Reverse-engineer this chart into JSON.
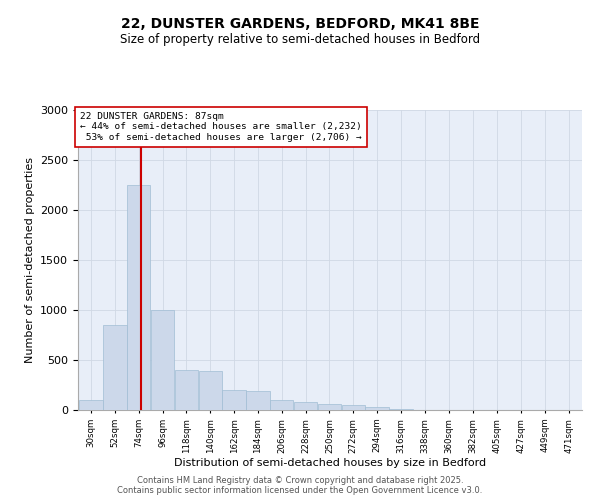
{
  "title_line1": "22, DUNSTER GARDENS, BEDFORD, MK41 8BE",
  "title_line2": "Size of property relative to semi-detached houses in Bedford",
  "xlabel": "Distribution of semi-detached houses by size in Bedford",
  "ylabel": "Number of semi-detached properties",
  "property_size": 87,
  "property_label": "22 DUNSTER GARDENS: 87sqm",
  "pct_smaller": 44,
  "count_smaller": 2232,
  "pct_larger": 53,
  "count_larger": 2706,
  "bin_labels": [
    "30sqm",
    "52sqm",
    "74sqm",
    "96sqm",
    "118sqm",
    "140sqm",
    "162sqm",
    "184sqm",
    "206sqm",
    "228sqm",
    "250sqm",
    "272sqm",
    "294sqm",
    "316sqm",
    "338sqm",
    "360sqm",
    "382sqm",
    "405sqm",
    "427sqm",
    "449sqm",
    "471sqm"
  ],
  "bin_starts": [
    30,
    52,
    74,
    96,
    118,
    140,
    162,
    184,
    206,
    228,
    250,
    272,
    294,
    316,
    338,
    360,
    382,
    405,
    427,
    449,
    471
  ],
  "bin_width": 22,
  "counts": [
    100,
    850,
    2250,
    1000,
    400,
    390,
    200,
    190,
    105,
    80,
    65,
    50,
    30,
    10,
    5,
    3,
    2,
    1,
    1,
    1,
    0
  ],
  "bar_color": "#ccd8ea",
  "bar_edge_color": "#a0bdd4",
  "vline_x": 87,
  "vline_color": "#cc0000",
  "grid_color": "#d0d8e4",
  "background_color": "#e8eef8",
  "footer_line1": "Contains HM Land Registry data © Crown copyright and database right 2025.",
  "footer_line2": "Contains public sector information licensed under the Open Government Licence v3.0.",
  "ylim": [
    0,
    3000
  ],
  "yticks": [
    0,
    500,
    1000,
    1500,
    2000,
    2500,
    3000
  ]
}
